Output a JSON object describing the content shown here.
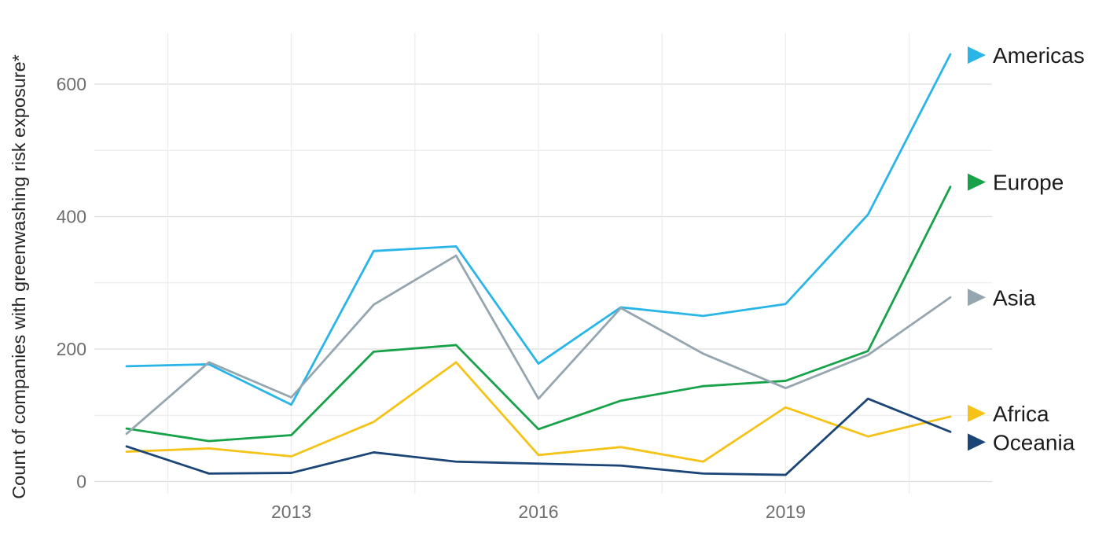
{
  "chart_data": {
    "type": "line",
    "title": "",
    "ylabel": "Count of companies with greenwashing risk exposure*",
    "xlabel": "",
    "x": [
      2011,
      2012,
      2013,
      2014,
      2015,
      2016,
      2017,
      2018,
      2019,
      2020,
      2021
    ],
    "xticks": [
      "2013",
      "2016",
      "2019"
    ],
    "yticks": [
      "0",
      "200",
      "400",
      "600"
    ],
    "ylim": [
      0,
      680
    ],
    "grid": "horizontal major every 200 with minor every 100; vertical gridlines every 1.5 years with ticks below axis",
    "legend_position": "right edge at line ends, right-pointing triangle markers",
    "series": [
      {
        "name": "Americas",
        "color": "#29b5e8",
        "values": [
          174,
          177,
          116,
          348,
          355,
          178,
          263,
          250,
          268,
          403,
          645
        ]
      },
      {
        "name": "Europe",
        "color": "#17a24a",
        "values": [
          80,
          61,
          70,
          196,
          206,
          79,
          122,
          144,
          152,
          197,
          445
        ]
      },
      {
        "name": "Asia",
        "color": "#95a6b0",
        "values": [
          72,
          180,
          127,
          267,
          341,
          125,
          262,
          193,
          141,
          191,
          278
        ]
      },
      {
        "name": "Africa",
        "color": "#f5c318",
        "values": [
          45,
          50,
          38,
          90,
          180,
          40,
          52,
          30,
          112,
          68,
          98
        ]
      },
      {
        "name": "Oceania",
        "color": "#1c4577",
        "values": [
          53,
          12,
          13,
          44,
          30,
          27,
          24,
          12,
          10,
          125,
          75
        ]
      }
    ],
    "colors": {
      "grid_minor": "#ededed",
      "grid_major": "#dddddd",
      "tick_label": "#6e6e70",
      "axis_label": "#262626",
      "legend_text": "#1c1c1c"
    }
  }
}
